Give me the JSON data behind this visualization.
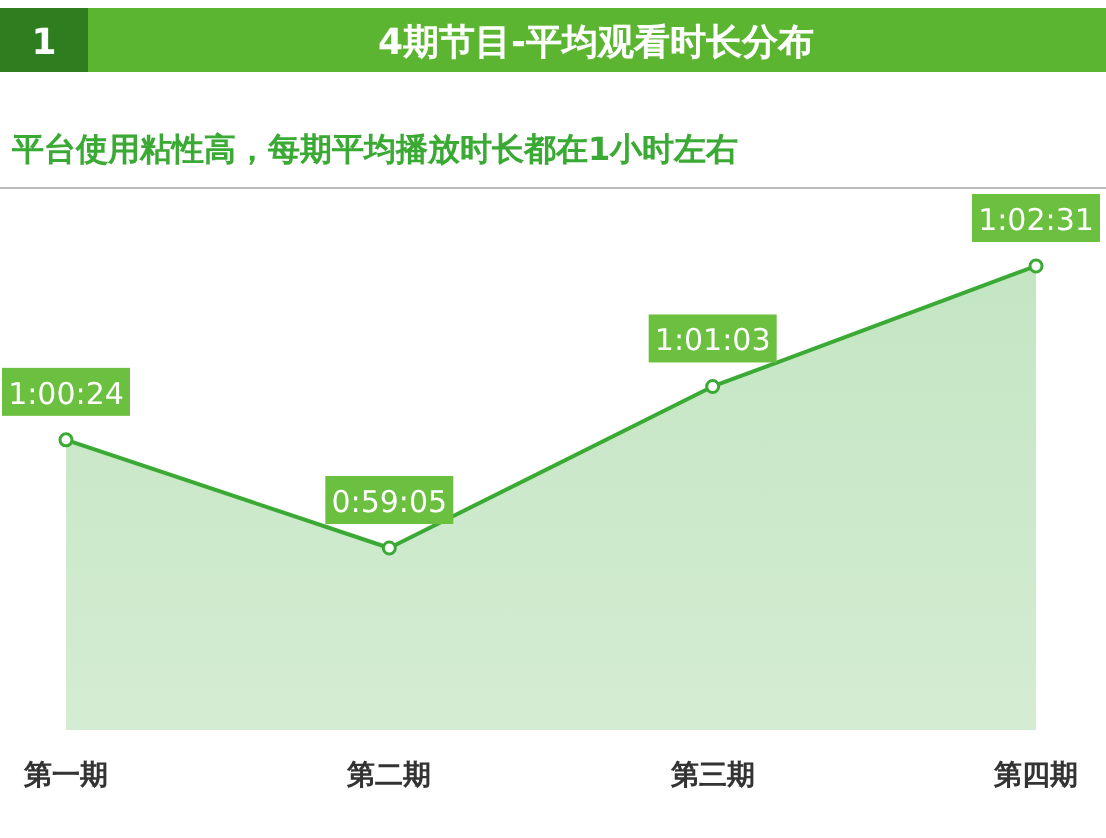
{
  "chart_data": {
    "type": "area",
    "title": "4期节目-平均观看时长分布",
    "subtitle": "平台使用粘性高，每期平均播放时长都在1小时左右",
    "annotations": [
      "1"
    ],
    "categories": [
      "第一期",
      "第二期",
      "第三期",
      "第四期"
    ],
    "values": [
      3624,
      3545,
      3663,
      3751
    ],
    "value_labels": [
      "1:00:24",
      "0:59:05",
      "1:01:03",
      "1:02:31"
    ],
    "color": "#3aaa35",
    "marker": "circle"
  }
}
